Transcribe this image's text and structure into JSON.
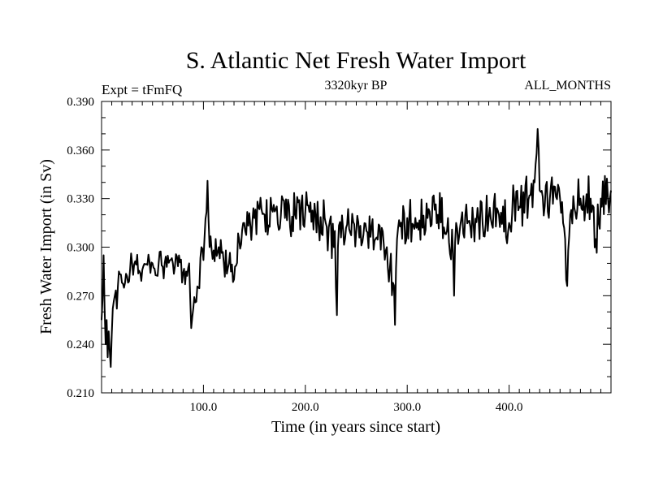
{
  "chart_data": {
    "type": "line",
    "title": "S. Atlantic Net Fresh Water Import",
    "subtitle_left": "Expt = tFmFQ",
    "subtitle_center": "3320kyr BP",
    "subtitle_right": "ALL_MONTHS",
    "xlabel": "Time (in years since start)",
    "ylabel": "Fresh Water Import (in Sv)",
    "xlim": [
      0,
      500
    ],
    "ylim": [
      0.21,
      0.39
    ],
    "x_ticks": [
      100,
      200,
      300,
      400
    ],
    "x_tick_labels": [
      "100.0",
      "200.0",
      "300.0",
      "400.0"
    ],
    "y_ticks": [
      0.21,
      0.24,
      0.27,
      0.3,
      0.33,
      0.36,
      0.39
    ],
    "y_tick_labels": [
      "0.210",
      "0.240",
      "0.270",
      "0.300",
      "0.330",
      "0.360",
      "0.390"
    ],
    "grid": false,
    "series": [
      {
        "name": "S. Atlantic net fresh water import",
        "color": "#000000",
        "anchors": [
          [
            0,
            0.255
          ],
          [
            1,
            0.268
          ],
          [
            2,
            0.295
          ],
          [
            3,
            0.262
          ],
          [
            4,
            0.24
          ],
          [
            5,
            0.255
          ],
          [
            6,
            0.232
          ],
          [
            7,
            0.248
          ],
          [
            8,
            0.236
          ],
          [
            9,
            0.226
          ],
          [
            10,
            0.246
          ],
          [
            11,
            0.262
          ],
          [
            13,
            0.27
          ],
          [
            15,
            0.262
          ],
          [
            17,
            0.285
          ],
          [
            20,
            0.278
          ],
          [
            25,
            0.282
          ],
          [
            30,
            0.29
          ],
          [
            40,
            0.286
          ],
          [
            50,
            0.29
          ],
          [
            60,
            0.288
          ],
          [
            70,
            0.29
          ],
          [
            80,
            0.284
          ],
          [
            86,
            0.29
          ],
          [
            88,
            0.25
          ],
          [
            90,
            0.262
          ],
          [
            95,
            0.275
          ],
          [
            98,
            0.3
          ],
          [
            100,
            0.292
          ],
          [
            104,
            0.341
          ],
          [
            106,
            0.3
          ],
          [
            110,
            0.298
          ],
          [
            115,
            0.3
          ],
          [
            120,
            0.29
          ],
          [
            125,
            0.29
          ],
          [
            130,
            0.28
          ],
          [
            135,
            0.305
          ],
          [
            140,
            0.315
          ],
          [
            150,
            0.318
          ],
          [
            160,
            0.32
          ],
          [
            170,
            0.322
          ],
          [
            180,
            0.318
          ],
          [
            190,
            0.32
          ],
          [
            200,
            0.322
          ],
          [
            210,
            0.32
          ],
          [
            220,
            0.315
          ],
          [
            228,
            0.3
          ],
          [
            229,
            0.31
          ],
          [
            230,
            0.275
          ],
          [
            231,
            0.258
          ],
          [
            232,
            0.3
          ],
          [
            235,
            0.306
          ],
          [
            240,
            0.312
          ],
          [
            250,
            0.31
          ],
          [
            260,
            0.31
          ],
          [
            270,
            0.306
          ],
          [
            280,
            0.3
          ],
          [
            286,
            0.278
          ],
          [
            288,
            0.252
          ],
          [
            290,
            0.305
          ],
          [
            300,
            0.318
          ],
          [
            310,
            0.315
          ],
          [
            320,
            0.318
          ],
          [
            330,
            0.32
          ],
          [
            340,
            0.318
          ],
          [
            345,
            0.296
          ],
          [
            346,
            0.27
          ],
          [
            348,
            0.315
          ],
          [
            360,
            0.316
          ],
          [
            370,
            0.318
          ],
          [
            380,
            0.318
          ],
          [
            390,
            0.32
          ],
          [
            400,
            0.315
          ],
          [
            405,
            0.33
          ],
          [
            410,
            0.325
          ],
          [
            420,
            0.332
          ],
          [
            425,
            0.34
          ],
          [
            428,
            0.373
          ],
          [
            430,
            0.335
          ],
          [
            440,
            0.33
          ],
          [
            450,
            0.33
          ],
          [
            455,
            0.305
          ],
          [
            457,
            0.276
          ],
          [
            460,
            0.32
          ],
          [
            470,
            0.33
          ],
          [
            480,
            0.33
          ],
          [
            485,
            0.305
          ],
          [
            490,
            0.33
          ],
          [
            500,
            0.335
          ]
        ]
      }
    ]
  }
}
